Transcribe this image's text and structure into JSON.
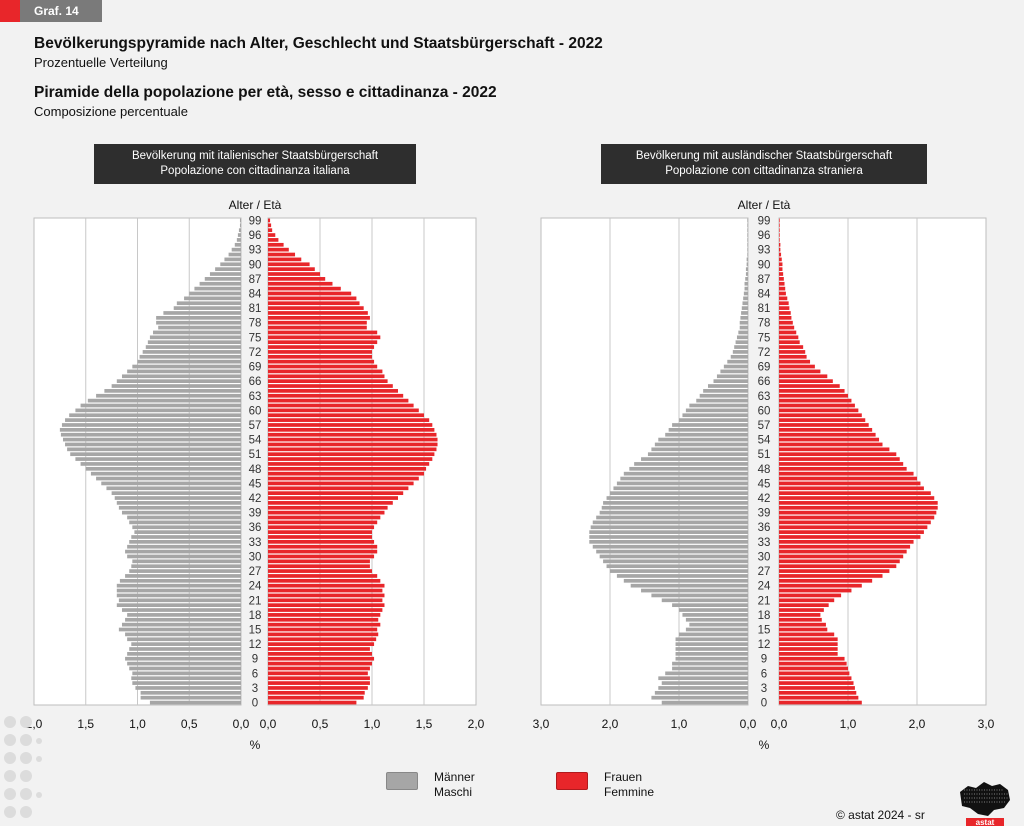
{
  "graf_label": "Graf. 14",
  "title_de": "Bevölkerungspyramide nach Alter, Geschlecht und Staatsbürgerschaft - 2022",
  "subtitle_de": "Prozentuelle Verteilung",
  "title_it": "Piramide della popolazione per età, sesso e cittadinanza - 2022",
  "subtitle_it": "Composizione percentuale",
  "panels": [
    {
      "line1": "Bevölkerung mit italienischer Staatsbürgerschaft",
      "line2": "Popolazione con cittadinanza italiana"
    },
    {
      "line1": "Bevölkerung mit ausländischer Staatsbürgerschaft",
      "line2": "Popolazione con cittadinanza straniera"
    }
  ],
  "age_axis_label": "Alter / Età",
  "unit_label": "%",
  "legend": {
    "male_de": "Männer",
    "male_it": "Maschi",
    "female_de": "Frauen",
    "female_it": "Femmine",
    "male_color": "#a6a6a6",
    "female_color": "#e8262a"
  },
  "copyright": "© astat 2024 - sr",
  "logo_text": "astat",
  "chart_data": [
    {
      "type": "bar",
      "orientation": "horizontal-pyramid",
      "title": "Bevölkerung mit italienischer Staatsbürgerschaft / Popolazione con cittadinanza italiana",
      "xlabel": "%",
      "ylabel": "Alter / Età",
      "xlim": [
        0,
        2.0
      ],
      "x_ticks": [
        "2,0",
        "1,5",
        "1,0",
        "0,5",
        "0,0",
        "0,0",
        "0,5",
        "1,0",
        "1,5",
        "2,0"
      ],
      "age_ticks": [
        0,
        3,
        6,
        9,
        12,
        15,
        18,
        21,
        24,
        27,
        30,
        33,
        36,
        39,
        42,
        45,
        48,
        51,
        54,
        57,
        60,
        63,
        66,
        69,
        72,
        75,
        78,
        81,
        84,
        87,
        90,
        93,
        96,
        99
      ],
      "categories_note": "ages 0 to 99",
      "series": [
        {
          "name": "Männer / Maschi",
          "values": [
            0.88,
            0.97,
            0.97,
            1.02,
            1.05,
            1.06,
            1.05,
            1.08,
            1.1,
            1.12,
            1.1,
            1.08,
            1.06,
            1.1,
            1.12,
            1.18,
            1.15,
            1.12,
            1.1,
            1.15,
            1.2,
            1.18,
            1.2,
            1.2,
            1.2,
            1.17,
            1.12,
            1.08,
            1.06,
            1.05,
            1.1,
            1.12,
            1.1,
            1.08,
            1.06,
            1.03,
            1.05,
            1.08,
            1.1,
            1.15,
            1.18,
            1.2,
            1.22,
            1.25,
            1.3,
            1.35,
            1.4,
            1.45,
            1.5,
            1.55,
            1.6,
            1.65,
            1.68,
            1.7,
            1.72,
            1.74,
            1.75,
            1.73,
            1.7,
            1.66,
            1.6,
            1.55,
            1.48,
            1.4,
            1.32,
            1.25,
            1.2,
            1.15,
            1.1,
            1.05,
            1.0,
            0.98,
            0.95,
            0.92,
            0.9,
            0.88,
            0.85,
            0.8,
            0.82,
            0.82,
            0.75,
            0.65,
            0.62,
            0.55,
            0.5,
            0.45,
            0.4,
            0.35,
            0.3,
            0.25,
            0.2,
            0.16,
            0.12,
            0.09,
            0.06,
            0.04,
            0.03,
            0.02,
            0.01,
            0.01
          ]
        },
        {
          "name": "Frauen / Femmine",
          "values": [
            0.85,
            0.92,
            0.93,
            0.96,
            0.98,
            0.98,
            0.96,
            0.98,
            1.0,
            1.02,
            1.0,
            0.98,
            1.02,
            1.04,
            1.06,
            1.05,
            1.08,
            1.06,
            1.08,
            1.1,
            1.12,
            1.1,
            1.12,
            1.1,
            1.12,
            1.08,
            1.05,
            1.0,
            0.98,
            0.98,
            1.02,
            1.05,
            1.05,
            1.02,
            1.0,
            1.0,
            1.02,
            1.05,
            1.08,
            1.12,
            1.15,
            1.2,
            1.25,
            1.3,
            1.35,
            1.4,
            1.45,
            1.5,
            1.52,
            1.55,
            1.58,
            1.6,
            1.62,
            1.63,
            1.63,
            1.62,
            1.6,
            1.58,
            1.55,
            1.5,
            1.45,
            1.4,
            1.35,
            1.3,
            1.25,
            1.2,
            1.15,
            1.12,
            1.1,
            1.05,
            1.02,
            1.0,
            1.0,
            1.02,
            1.05,
            1.08,
            1.05,
            0.95,
            0.95,
            0.98,
            0.96,
            0.92,
            0.88,
            0.85,
            0.8,
            0.7,
            0.62,
            0.55,
            0.5,
            0.45,
            0.4,
            0.32,
            0.26,
            0.2,
            0.15,
            0.1,
            0.07,
            0.04,
            0.03,
            0.02
          ]
        }
      ]
    },
    {
      "type": "bar",
      "orientation": "horizontal-pyramid",
      "title": "Bevölkerung mit ausländischer Staatsbürgerschaft / Popolazione con cittadinanza straniera",
      "xlabel": "%",
      "ylabel": "Alter / Età",
      "xlim": [
        0,
        3.0
      ],
      "x_ticks": [
        "3,0",
        "2,0",
        "1,0",
        "0,0",
        "0,0",
        "1,0",
        "2,0",
        "3,0"
      ],
      "age_ticks": [
        0,
        3,
        6,
        9,
        12,
        15,
        18,
        21,
        24,
        27,
        30,
        33,
        36,
        39,
        42,
        45,
        48,
        51,
        54,
        57,
        60,
        63,
        66,
        69,
        72,
        75,
        78,
        81,
        84,
        87,
        90,
        93,
        96,
        99
      ],
      "categories_note": "ages 0 to 99",
      "series": [
        {
          "name": "Männer / Maschi",
          "values": [
            1.25,
            1.4,
            1.35,
            1.3,
            1.25,
            1.3,
            1.2,
            1.1,
            1.1,
            1.05,
            1.05,
            1.05,
            1.05,
            1.05,
            1.0,
            0.9,
            0.85,
            0.9,
            0.95,
            1.0,
            1.1,
            1.25,
            1.4,
            1.55,
            1.7,
            1.8,
            1.9,
            2.0,
            2.05,
            2.1,
            2.15,
            2.2,
            2.25,
            2.3,
            2.3,
            2.3,
            2.28,
            2.25,
            2.2,
            2.15,
            2.12,
            2.1,
            2.05,
            2.0,
            1.95,
            1.9,
            1.85,
            1.8,
            1.72,
            1.65,
            1.55,
            1.45,
            1.4,
            1.35,
            1.3,
            1.2,
            1.15,
            1.1,
            1.0,
            0.95,
            0.9,
            0.85,
            0.75,
            0.7,
            0.65,
            0.58,
            0.5,
            0.45,
            0.4,
            0.35,
            0.3,
            0.25,
            0.22,
            0.2,
            0.18,
            0.16,
            0.14,
            0.12,
            0.12,
            0.11,
            0.1,
            0.09,
            0.08,
            0.07,
            0.06,
            0.05,
            0.05,
            0.04,
            0.03,
            0.03,
            0.02,
            0.02,
            0.01,
            0.01,
            0.01,
            0.01,
            0.01,
            0.01,
            0.01,
            0.01
          ]
        },
        {
          "name": "Frauen / Femmine",
          "values": [
            1.2,
            1.15,
            1.12,
            1.1,
            1.08,
            1.05,
            1.02,
            1.0,
            0.98,
            0.95,
            0.85,
            0.85,
            0.85,
            0.85,
            0.8,
            0.7,
            0.68,
            0.62,
            0.6,
            0.65,
            0.72,
            0.8,
            0.9,
            1.05,
            1.2,
            1.35,
            1.5,
            1.6,
            1.7,
            1.75,
            1.8,
            1.85,
            1.9,
            1.95,
            2.05,
            2.1,
            2.15,
            2.2,
            2.25,
            2.28,
            2.3,
            2.3,
            2.25,
            2.2,
            2.1,
            2.05,
            2.0,
            1.95,
            1.85,
            1.8,
            1.75,
            1.7,
            1.6,
            1.5,
            1.45,
            1.4,
            1.35,
            1.3,
            1.25,
            1.2,
            1.15,
            1.1,
            1.05,
            1.0,
            0.95,
            0.88,
            0.78,
            0.7,
            0.6,
            0.52,
            0.45,
            0.4,
            0.38,
            0.35,
            0.3,
            0.28,
            0.25,
            0.22,
            0.2,
            0.18,
            0.17,
            0.15,
            0.14,
            0.12,
            0.1,
            0.09,
            0.08,
            0.07,
            0.06,
            0.05,
            0.05,
            0.04,
            0.03,
            0.02,
            0.02,
            0.01,
            0.01,
            0.01,
            0.01,
            0.01
          ]
        }
      ]
    }
  ]
}
